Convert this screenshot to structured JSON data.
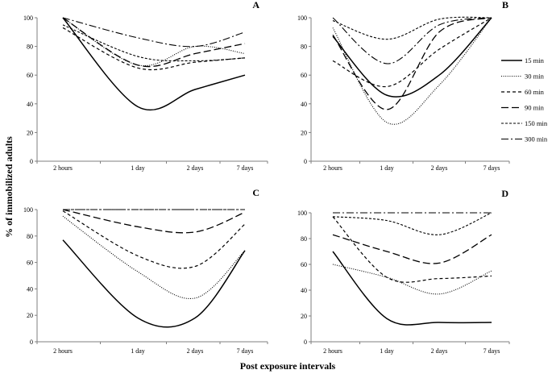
{
  "chart_data": {
    "type": "line",
    "ylabel": "% of immobilized adults",
    "xlabel": "Post exposure intervals",
    "categories": [
      "2 hours",
      "1 day",
      "2 days",
      "7 days"
    ],
    "ylim": [
      0,
      100
    ],
    "yticks": [
      0,
      20,
      40,
      60,
      80,
      100
    ],
    "legend": [
      "15 min",
      "30 min",
      "60 min",
      "90 min",
      "150 min",
      "300 min"
    ],
    "legend_position": "right of panel B",
    "panels": [
      {
        "label": "A",
        "series": [
          {
            "name": "15 min",
            "values": [
              100,
              38,
              50,
              60
            ]
          },
          {
            "name": "30 min",
            "values": [
              100,
              67,
              80,
              75
            ]
          },
          {
            "name": "60 min",
            "values": [
              93,
              65,
              69,
              72
            ]
          },
          {
            "name": "90 min",
            "values": [
              100,
              67,
              75,
              82
            ]
          },
          {
            "name": "150 min",
            "values": [
              95,
              73,
              70,
              72
            ]
          },
          {
            "name": "300 min",
            "values": [
              100,
              86,
              80,
              90
            ]
          }
        ]
      },
      {
        "label": "B",
        "series": [
          {
            "name": "15 min",
            "values": [
              87,
              46,
              60,
              100
            ]
          },
          {
            "name": "30 min",
            "values": [
              93,
              27,
              53,
              100
            ]
          },
          {
            "name": "60 min",
            "values": [
              70,
              52,
              78,
              100
            ]
          },
          {
            "name": "90 min",
            "values": [
              88,
              36,
              90,
              100
            ]
          },
          {
            "name": "150 min",
            "values": [
              98,
              85,
              99,
              100
            ]
          },
          {
            "name": "300 min",
            "values": [
              100,
              68,
              95,
              100
            ]
          }
        ]
      },
      {
        "label": "C",
        "series": [
          {
            "name": "15 min",
            "values": [
              77,
              18,
              18,
              69
            ]
          },
          {
            "name": "30 min",
            "values": [
              95,
              53,
              33,
              69
            ]
          },
          {
            "name": "60 min",
            "values": [
              99,
              65,
              57,
              89
            ]
          },
          {
            "name": "90 min",
            "values": [
              100,
              87,
              83,
              98
            ]
          },
          {
            "name": "150 min",
            "values": [
              100,
              100,
              100,
              100
            ]
          },
          {
            "name": "300 min",
            "values": [
              100,
              100,
              100,
              100
            ]
          }
        ]
      },
      {
        "label": "D",
        "series": [
          {
            "name": "15 min",
            "values": [
              70,
              18,
              15,
              15
            ]
          },
          {
            "name": "30 min",
            "values": [
              60,
              50,
              37,
              55
            ]
          },
          {
            "name": "60 min",
            "values": [
              97,
              50,
              49,
              51
            ]
          },
          {
            "name": "90 min",
            "values": [
              83,
              70,
              61,
              83
            ]
          },
          {
            "name": "150 min",
            "values": [
              97,
              94,
              83,
              100
            ]
          },
          {
            "name": "300 min",
            "values": [
              100,
              100,
              100,
              100
            ]
          }
        ]
      }
    ]
  }
}
